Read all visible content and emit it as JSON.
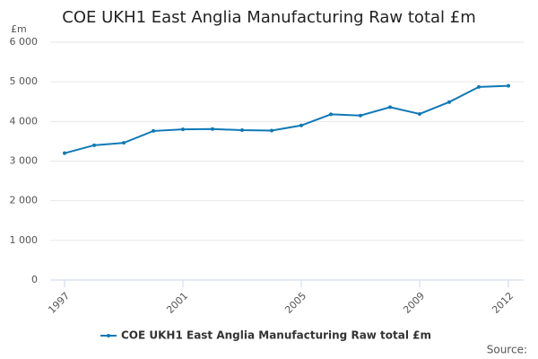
{
  "chart_data": {
    "type": "line",
    "title": "COE UKH1 East Anglia Manufacturing Raw total £m",
    "y_unit_label": "£m",
    "source_label": "Source:",
    "x": [
      1997,
      1998,
      1999,
      2000,
      2001,
      2002,
      2003,
      2004,
      2005,
      2006,
      2007,
      2008,
      2009,
      2010,
      2011,
      2012
    ],
    "series": [
      {
        "name": "COE UKH1 East Anglia Manufacturing Raw total £m",
        "color": "#0f79b5",
        "values": [
          3200,
          3400,
          3460,
          3760,
          3800,
          3810,
          3780,
          3770,
          3900,
          4180,
          4150,
          4360,
          4190,
          4490,
          4870,
          4900
        ]
      }
    ],
    "xlim": [
      1997,
      2012
    ],
    "xticks": [
      1997,
      2001,
      2005,
      2009,
      2012
    ],
    "ylim": [
      0,
      6000
    ],
    "yticks": [
      0,
      {
        "value": 1000,
        "label": "1 000"
      },
      {
        "value": 2000,
        "label": "2 000"
      },
      {
        "value": 3000,
        "label": "3 000"
      },
      {
        "value": 4000,
        "label": "4 000"
      },
      {
        "value": 5000,
        "label": "5 000"
      },
      {
        "value": 6000,
        "label": "6 000"
      }
    ],
    "grid": true,
    "legend": "bottom"
  }
}
